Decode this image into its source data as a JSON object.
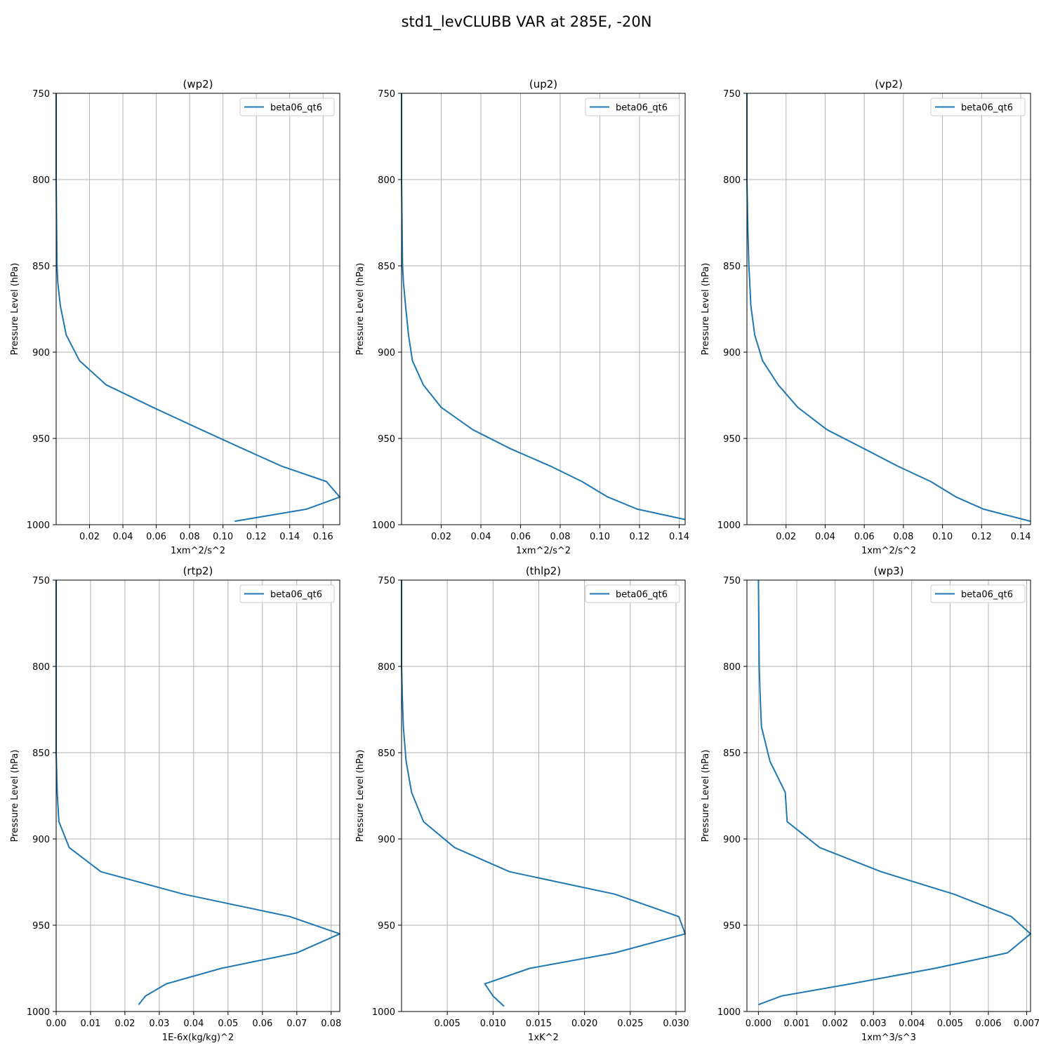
{
  "figure": {
    "suptitle": "std1_levCLUBB VAR at 285E, -20N"
  },
  "chart_data": [
    {
      "type": "line",
      "title": "(wp2)",
      "xlabel": "1xm^2/s^2",
      "ylabel": "Pressure Level (hPa)",
      "ylim": [
        1000,
        750
      ],
      "yticks": [
        750,
        800,
        850,
        900,
        950,
        1000
      ],
      "xlim": [
        0.0,
        0.17
      ],
      "xticks": [
        0.02,
        0.04,
        0.06,
        0.08,
        0.1,
        0.12,
        0.14,
        0.16
      ],
      "xtick_labels": [
        "0.02",
        "0.04",
        "0.06",
        "0.08",
        "0.10",
        "0.12",
        "0.14",
        "0.16"
      ],
      "grid": true,
      "legend_position": "upper right",
      "series": [
        {
          "name": "beta06_qt6",
          "color": "#1f77b4",
          "x": [
            0.0,
            0.0,
            0.0005,
            0.001,
            0.0025,
            0.006,
            0.014,
            0.03,
            0.058,
            0.087,
            0.112,
            0.135,
            0.162,
            0.17,
            0.15,
            0.107
          ],
          "y": [
            750,
            800,
            850,
            860,
            873,
            890,
            905,
            919,
            932,
            945,
            956,
            966,
            975,
            984,
            991,
            998
          ]
        }
      ]
    },
    {
      "type": "line",
      "title": "(up2)",
      "xlabel": "1xm^2/s^2",
      "ylabel": "Pressure Level (hPa)",
      "ylim": [
        1000,
        750
      ],
      "yticks": [
        750,
        800,
        850,
        900,
        950,
        1000
      ],
      "xlim": [
        0.0,
        0.143
      ],
      "xticks": [
        0.02,
        0.04,
        0.06,
        0.08,
        0.1,
        0.12,
        0.14
      ],
      "xtick_labels": [
        "0.02",
        "0.04",
        "0.06",
        "0.08",
        "0.10",
        "0.12",
        "0.14"
      ],
      "grid": true,
      "legend_position": "upper right",
      "series": [
        {
          "name": "beta06_qt6",
          "color": "#1f77b4",
          "x": [
            0.0,
            0.0,
            0.0005,
            0.001,
            0.002,
            0.0035,
            0.0055,
            0.011,
            0.02,
            0.036,
            0.055,
            0.075,
            0.091,
            0.104,
            0.119,
            0.143
          ],
          "y": [
            750,
            800,
            850,
            860,
            873,
            890,
            905,
            919,
            932,
            945,
            956,
            966,
            975,
            984,
            991,
            997
          ]
        }
      ]
    },
    {
      "type": "line",
      "title": "(vp2)",
      "xlabel": "1xm^2/s^2",
      "ylabel": "Pressure Level (hPa)",
      "ylim": [
        1000,
        750
      ],
      "yticks": [
        750,
        800,
        850,
        900,
        950,
        1000
      ],
      "xlim": [
        0.0,
        0.145
      ],
      "xticks": [
        0.02,
        0.04,
        0.06,
        0.08,
        0.1,
        0.12,
        0.14
      ],
      "xtick_labels": [
        "0.02",
        "0.04",
        "0.06",
        "0.08",
        "0.10",
        "0.12",
        "0.14"
      ],
      "grid": true,
      "legend_position": "upper right",
      "series": [
        {
          "name": "beta06_qt6",
          "color": "#1f77b4",
          "x": [
            0.0,
            0.0,
            0.0005,
            0.001,
            0.002,
            0.004,
            0.008,
            0.016,
            0.026,
            0.041,
            0.06,
            0.077,
            0.094,
            0.107,
            0.121,
            0.145
          ],
          "y": [
            750,
            800,
            830,
            850,
            873,
            890,
            905,
            919,
            932,
            945,
            956,
            966,
            975,
            984,
            991,
            998
          ]
        }
      ]
    },
    {
      "type": "line",
      "title": "(rtp2)",
      "xlabel": "1E-6x(kg/kg)^2",
      "ylabel": "Pressure Level (hPa)",
      "ylim": [
        1000,
        750
      ],
      "yticks": [
        750,
        800,
        850,
        900,
        950,
        1000
      ],
      "xlim": [
        0.0,
        0.0825
      ],
      "xticks": [
        0.0,
        0.01,
        0.02,
        0.03,
        0.04,
        0.05,
        0.06,
        0.07,
        0.08
      ],
      "xtick_labels": [
        "0.00",
        "0.01",
        "0.02",
        "0.03",
        "0.04",
        "0.05",
        "0.06",
        "0.07",
        "0.08"
      ],
      "grid": true,
      "legend_position": "upper right",
      "series": [
        {
          "name": "beta06_qt6",
          "color": "#1f77b4",
          "x": [
            0.0,
            0.0,
            0.0,
            0.0003,
            0.0008,
            0.0038,
            0.013,
            0.037,
            0.068,
            0.0825,
            0.07,
            0.048,
            0.032,
            0.026,
            0.024
          ],
          "y": [
            750,
            800,
            850,
            873,
            890,
            905,
            919,
            932,
            945,
            955,
            966,
            975,
            984,
            991,
            996
          ]
        }
      ]
    },
    {
      "type": "line",
      "title": "(thlp2)",
      "xlabel": "1xK^2",
      "ylabel": "Pressure Level (hPa)",
      "ylim": [
        1000,
        750
      ],
      "yticks": [
        750,
        800,
        850,
        900,
        950,
        1000
      ],
      "xlim": [
        0.0,
        0.031
      ],
      "xticks": [
        0.005,
        0.01,
        0.015,
        0.02,
        0.025,
        0.03
      ],
      "xtick_labels": [
        "0.005",
        "0.010",
        "0.015",
        "0.020",
        "0.025",
        "0.030"
      ],
      "grid": true,
      "legend_position": "upper right",
      "series": [
        {
          "name": "beta06_qt6",
          "color": "#1f77b4",
          "x": [
            0.0,
            0.0,
            0.0001,
            0.0002,
            0.0005,
            0.0011,
            0.0024,
            0.0058,
            0.0118,
            0.0233,
            0.0303,
            0.031,
            0.0233,
            0.014,
            0.0091,
            0.01,
            0.0112
          ],
          "y": [
            750,
            800,
            820,
            835,
            855,
            873,
            890,
            905,
            919,
            932,
            945,
            955,
            966,
            975,
            984,
            991,
            997
          ]
        }
      ]
    },
    {
      "type": "line",
      "title": "(wp3)",
      "xlabel": "1xm^3/s^3",
      "ylabel": "Pressure Level (hPa)",
      "ylim": [
        1000,
        750
      ],
      "yticks": [
        750,
        800,
        850,
        900,
        950,
        1000
      ],
      "xlim": [
        -0.0003,
        0.0071
      ],
      "xticks": [
        0.0,
        0.001,
        0.002,
        0.003,
        0.004,
        0.005,
        0.006,
        0.007
      ],
      "xtick_labels": [
        "0.000",
        "0.001",
        "0.002",
        "0.003",
        "0.004",
        "0.005",
        "0.006",
        "0.007"
      ],
      "grid": true,
      "legend_position": "upper right",
      "series": [
        {
          "name": "beta06_qt6",
          "color": "#1f77b4",
          "x": [
            0.0,
            2e-05,
            5e-05,
            8e-05,
            0.0003,
            0.0007,
            0.00075,
            0.0016,
            0.0032,
            0.0051,
            0.0066,
            0.0071,
            0.0065,
            0.0046,
            0.0024,
            0.0006,
            0.0
          ],
          "y": [
            750,
            800,
            820,
            835,
            855,
            873,
            890,
            905,
            919,
            932,
            945,
            955,
            966,
            975,
            984,
            991,
            996
          ]
        }
      ]
    }
  ]
}
